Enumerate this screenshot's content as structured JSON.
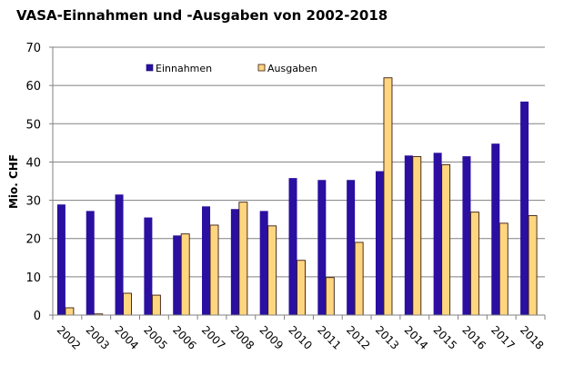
{
  "chart_data": {
    "type": "bar",
    "title": "VASA-Einnahmen und -Ausgaben von 2002-2018",
    "xlabel": "",
    "ylabel": "Mio. CHF",
    "ylim": [
      0,
      70
    ],
    "yticks": [
      0,
      10,
      20,
      30,
      40,
      50,
      60,
      70
    ],
    "grid": true,
    "legend_position": "top-left",
    "categories": [
      "2002",
      "2003",
      "2004",
      "2005",
      "2006",
      "2007",
      "2008",
      "2009",
      "2010",
      "2011",
      "2012",
      "2013",
      "2014",
      "2015",
      "2016",
      "2017",
      "2018"
    ],
    "series": [
      {
        "name": "Einnahmen",
        "color": "#2a0fa0",
        "values": [
          28.9,
          27.2,
          31.5,
          25.5,
          20.8,
          28.4,
          27.7,
          27.2,
          35.8,
          35.3,
          35.3,
          37.6,
          41.7,
          42.4,
          41.5,
          44.8,
          55.8
        ]
      },
      {
        "name": "Ausgaben",
        "color": "#ffd680",
        "values": [
          1.9,
          0.3,
          5.7,
          5.2,
          21.2,
          23.5,
          29.5,
          23.3,
          14.3,
          9.8,
          19.0,
          62.0,
          41.4,
          39.3,
          26.9,
          24.0,
          26.0
        ]
      }
    ]
  }
}
